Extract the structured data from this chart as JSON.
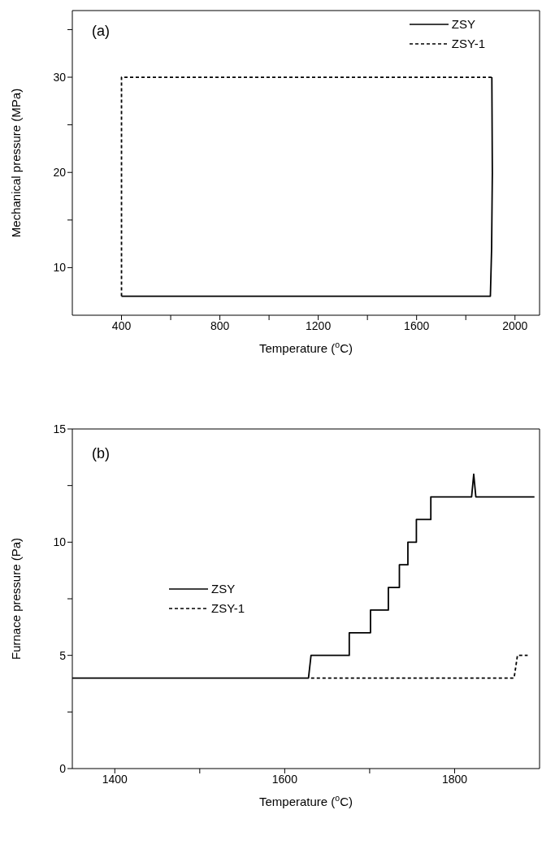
{
  "chart_data": [
    {
      "type": "line",
      "xlabel": "Temperature ($^{o}$C)",
      "ylabel": "Mechanical pressure (MPa)",
      "annotations": [
        "(a)"
      ],
      "legend": "top right",
      "marker": "none",
      "xlim": [
        200,
        2100
      ],
      "xticks": [
        400,
        {
          "value": 600,
          "label": null
        },
        800,
        {
          "value": 1000,
          "label": null
        },
        1200,
        {
          "value": 1400,
          "label": null
        },
        1600,
        {
          "value": 1800,
          "label": null
        },
        2000
      ],
      "ylim": [
        5,
        37
      ],
      "yticks": [
        10,
        {
          "value": 15,
          "label": null
        },
        20,
        {
          "value": 25,
          "label": null
        },
        30,
        {
          "value": 35,
          "label": null
        }
      ],
      "series": [
        {
          "name": "ZSY",
          "color": "#000000",
          "line_style": "solid",
          "x": [
            400,
            1900,
            1905,
            1908,
            1906
          ],
          "values": [
            7,
            7,
            12,
            20,
            30
          ]
        },
        {
          "name": "ZSY-1",
          "color": "#000000",
          "line_style": "dashed",
          "x": [
            1905,
            400,
            400
          ],
          "values": [
            30,
            30,
            7
          ]
        }
      ]
    },
    {
      "type": "line",
      "xlabel": "Temperature ($^{o}$C)",
      "ylabel": "Furnace pressure (Pa)",
      "annotations": [
        "(b)"
      ],
      "legend": "left",
      "marker": "none",
      "xlim": [
        1350,
        1900
      ],
      "xticks": [
        1400,
        {
          "value": 1500,
          "label": null
        },
        1600,
        {
          "value": 1700,
          "label": null
        },
        1800
      ],
      "ylim": [
        0,
        15
      ],
      "yticks": [
        0,
        {
          "value": 2.5,
          "label": null
        },
        5,
        {
          "value": 7.5,
          "label": null
        },
        10,
        {
          "value": 12.5,
          "label": null
        },
        15
      ],
      "series": [
        {
          "name": "ZSY",
          "color": "#000000",
          "line_style": "solid",
          "x": [
            1350,
            1628,
            1631,
            1676,
            1676,
            1701,
            1701,
            1722,
            1722,
            1735,
            1735,
            1745,
            1745,
            1755,
            1755,
            1772,
            1772,
            1820,
            1822.5,
            1825,
            1894
          ],
          "values": [
            4,
            4,
            5,
            5,
            6,
            6,
            7,
            7,
            8,
            8,
            9,
            9,
            10,
            10,
            11,
            11,
            12,
            12,
            13,
            12,
            12
          ]
        },
        {
          "name": "ZSY-1",
          "color": "#000000",
          "line_style": "dashed",
          "x": [
            1631,
            1870,
            1874,
            1886
          ],
          "values": [
            4,
            4,
            5,
            5
          ]
        }
      ]
    }
  ]
}
